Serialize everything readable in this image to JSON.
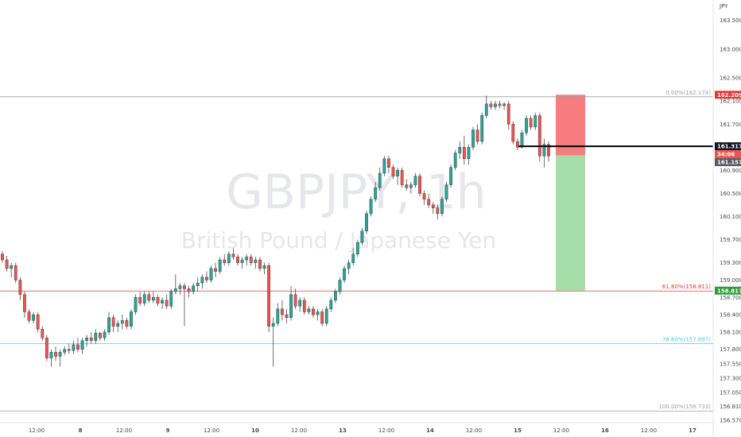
{
  "watermark": {
    "symbol": "GBPJPY, 1h",
    "description": "British Pound / Japanese Yen"
  },
  "currency": "JPY",
  "colors": {
    "up": "#26a69a",
    "down": "#ef5350",
    "wick": "#4a4a4a",
    "fib0": "#9e9e9e",
    "fib618": "#e53935",
    "fib786": "#4dd0e1",
    "fib100": "#9e9e9e",
    "stop_zone": "#f77c80",
    "target_zone": "#a5dea8",
    "entry_line": "#000000"
  },
  "chart_data": {
    "type": "candlestick",
    "symbol": "GBPJPY",
    "timeframe": "1h",
    "y_axis": {
      "ylim": [
        156.53,
        163.85
      ],
      "ticks": [
        "156.570",
        "156.810",
        "157.050",
        "157.300",
        "157.550",
        "157.800",
        "158.100",
        "158.400",
        "158.700",
        "159.000",
        "159.300",
        "159.700",
        "160.100",
        "160.500",
        "160.900",
        "161.300",
        "161.700",
        "162.100",
        "162.500",
        "163.000",
        "163.500"
      ]
    },
    "x_axis": {
      "ticks": [
        "12:00",
        "8",
        "12:00",
        "9",
        "12:00",
        "10",
        "12:00",
        "13",
        "12:00",
        "14",
        "12:00",
        "15",
        "12:00",
        "16",
        "12:00",
        "17"
      ]
    },
    "fib_levels": [
      {
        "label": "0.00%(162.174)",
        "level": 162.174,
        "name": "fib0"
      },
      {
        "label": "61.80%(158.811)",
        "level": 158.811,
        "name": "fib618"
      },
      {
        "label": "78.60%(157.897)",
        "level": 157.897,
        "name": "fib786"
      },
      {
        "label": "100.00%(156.733)",
        "level": 156.733,
        "name": "fib100"
      }
    ],
    "position": {
      "type": "short",
      "entry": 161.157,
      "stop": 162.209,
      "target": 158.817,
      "stop_label": "162.209",
      "target_label": "158.817",
      "entry_label": "161.157"
    },
    "current_price": {
      "label": "161.317",
      "value": 161.317,
      "countdown": "34:06"
    },
    "candles": [
      [
        159.45,
        159.5,
        159.3,
        159.35
      ],
      [
        159.35,
        159.42,
        159.15,
        159.2
      ],
      [
        159.2,
        159.3,
        159.05,
        159.25
      ],
      [
        159.25,
        159.3,
        158.95,
        159.0
      ],
      [
        159.0,
        159.05,
        158.65,
        158.75
      ],
      [
        158.75,
        158.8,
        158.35,
        158.45
      ],
      [
        158.45,
        158.5,
        158.25,
        158.3
      ],
      [
        158.3,
        158.45,
        158.25,
        158.4
      ],
      [
        158.4,
        158.45,
        158.1,
        158.15
      ],
      [
        158.15,
        158.2,
        157.95,
        158.0
      ],
      [
        158.0,
        158.05,
        157.6,
        157.65
      ],
      [
        157.65,
        157.8,
        157.5,
        157.75
      ],
      [
        157.75,
        157.85,
        157.6,
        157.68
      ],
      [
        157.68,
        157.8,
        157.5,
        157.75
      ],
      [
        157.75,
        157.85,
        157.7,
        157.8
      ],
      [
        157.8,
        157.9,
        157.72,
        157.78
      ],
      [
        157.78,
        157.95,
        157.72,
        157.88
      ],
      [
        157.88,
        158.0,
        157.75,
        157.8
      ],
      [
        157.8,
        158.0,
        157.72,
        157.95
      ],
      [
        157.95,
        158.05,
        157.85,
        158.0
      ],
      [
        158.0,
        158.1,
        157.9,
        157.95
      ],
      [
        157.95,
        158.15,
        157.9,
        158.08
      ],
      [
        158.08,
        158.1,
        157.95,
        158.0
      ],
      [
        158.0,
        158.15,
        157.95,
        158.1
      ],
      [
        158.1,
        158.45,
        158.05,
        158.35
      ],
      [
        158.35,
        158.4,
        158.1,
        158.2
      ],
      [
        158.2,
        158.3,
        158.1,
        158.25
      ],
      [
        158.25,
        158.4,
        158.15,
        158.3
      ],
      [
        158.3,
        158.35,
        158.15,
        158.2
      ],
      [
        158.2,
        158.5,
        158.15,
        158.45
      ],
      [
        158.45,
        158.75,
        158.4,
        158.7
      ],
      [
        158.7,
        158.8,
        158.55,
        158.6
      ],
      [
        158.6,
        158.8,
        158.55,
        158.75
      ],
      [
        158.75,
        158.8,
        158.6,
        158.65
      ],
      [
        158.65,
        158.8,
        158.6,
        158.7
      ],
      [
        158.7,
        158.75,
        158.55,
        158.6
      ],
      [
        158.6,
        158.7,
        158.5,
        158.65
      ],
      [
        158.65,
        158.75,
        158.5,
        158.55
      ],
      [
        158.55,
        158.85,
        158.5,
        158.8
      ],
      [
        158.8,
        159.1,
        158.75,
        158.85
      ],
      [
        158.85,
        158.95,
        158.75,
        158.9
      ],
      [
        158.9,
        158.95,
        158.2,
        158.85
      ],
      [
        158.85,
        158.9,
        158.7,
        158.8
      ],
      [
        158.8,
        158.95,
        158.75,
        158.9
      ],
      [
        158.9,
        159.05,
        158.8,
        158.95
      ],
      [
        158.95,
        159.1,
        158.85,
        159.05
      ],
      [
        159.05,
        159.15,
        158.95,
        159.0
      ],
      [
        159.0,
        159.25,
        158.95,
        159.2
      ],
      [
        159.2,
        159.3,
        159.05,
        159.15
      ],
      [
        159.15,
        159.4,
        159.1,
        159.35
      ],
      [
        159.35,
        159.45,
        159.25,
        159.3
      ],
      [
        159.3,
        159.5,
        159.25,
        159.45
      ],
      [
        159.45,
        159.55,
        159.35,
        159.4
      ],
      [
        159.4,
        159.45,
        159.25,
        159.3
      ],
      [
        159.3,
        159.4,
        159.2,
        159.35
      ],
      [
        159.35,
        159.45,
        159.25,
        159.4
      ],
      [
        159.4,
        159.45,
        159.25,
        159.3
      ],
      [
        159.3,
        159.4,
        159.2,
        159.35
      ],
      [
        159.35,
        159.4,
        159.15,
        159.2
      ],
      [
        159.2,
        159.3,
        159.1,
        159.25
      ],
      [
        159.25,
        159.3,
        158.1,
        158.2
      ],
      [
        158.2,
        158.35,
        157.5,
        158.25
      ],
      [
        158.25,
        158.6,
        158.2,
        158.5
      ],
      [
        158.5,
        158.65,
        158.3,
        158.4
      ],
      [
        158.4,
        158.5,
        158.25,
        158.35
      ],
      [
        158.35,
        158.9,
        158.3,
        158.75
      ],
      [
        158.75,
        158.85,
        158.5,
        158.55
      ],
      [
        158.55,
        158.7,
        158.45,
        158.65
      ],
      [
        158.65,
        158.7,
        158.4,
        158.45
      ],
      [
        158.45,
        158.55,
        158.4,
        158.5
      ],
      [
        158.5,
        158.55,
        158.35,
        158.4
      ],
      [
        158.4,
        158.5,
        158.3,
        158.45
      ],
      [
        158.45,
        158.5,
        158.2,
        158.25
      ],
      [
        158.25,
        158.55,
        158.2,
        158.5
      ],
      [
        158.5,
        158.7,
        158.45,
        158.65
      ],
      [
        158.65,
        158.85,
        158.6,
        158.8
      ],
      [
        158.8,
        159.05,
        158.75,
        159.0
      ],
      [
        159.0,
        159.25,
        158.95,
        159.2
      ],
      [
        159.2,
        159.35,
        159.1,
        159.3
      ],
      [
        159.3,
        159.55,
        159.25,
        159.45
      ],
      [
        159.45,
        159.7,
        159.4,
        159.65
      ],
      [
        159.65,
        159.9,
        159.6,
        159.85
      ],
      [
        159.85,
        160.2,
        159.8,
        160.15
      ],
      [
        160.15,
        160.45,
        160.1,
        160.4
      ],
      [
        160.4,
        160.7,
        160.35,
        160.6
      ],
      [
        160.6,
        160.95,
        160.55,
        160.85
      ],
      [
        160.85,
        161.15,
        160.8,
        161.1
      ],
      [
        161.1,
        161.15,
        160.85,
        160.95
      ],
      [
        160.95,
        161.0,
        160.75,
        160.8
      ],
      [
        160.8,
        160.95,
        160.65,
        160.9
      ],
      [
        160.9,
        160.95,
        160.6,
        160.65
      ],
      [
        160.65,
        160.75,
        160.55,
        160.6
      ],
      [
        160.6,
        160.7,
        160.5,
        160.65
      ],
      [
        160.65,
        160.85,
        160.6,
        160.8
      ],
      [
        160.8,
        160.85,
        160.45,
        160.5
      ],
      [
        160.5,
        160.55,
        160.3,
        160.4
      ],
      [
        160.4,
        160.5,
        160.25,
        160.3
      ],
      [
        160.3,
        160.35,
        160.15,
        160.25
      ],
      [
        160.25,
        160.3,
        160.05,
        160.15
      ],
      [
        160.15,
        160.45,
        160.1,
        160.4
      ],
      [
        160.4,
        160.7,
        160.35,
        160.65
      ],
      [
        160.65,
        161.0,
        160.6,
        160.95
      ],
      [
        160.95,
        161.25,
        160.9,
        161.2
      ],
      [
        161.2,
        161.4,
        161.1,
        161.3
      ],
      [
        161.3,
        161.5,
        161.0,
        161.1
      ],
      [
        161.1,
        161.35,
        161.0,
        161.3
      ],
      [
        161.3,
        161.65,
        161.25,
        161.6
      ],
      [
        161.6,
        161.7,
        161.35,
        161.4
      ],
      [
        161.4,
        161.9,
        161.35,
        161.85
      ],
      [
        161.85,
        162.2,
        161.8,
        162.05
      ],
      [
        162.05,
        162.1,
        161.95,
        162.0
      ],
      [
        162.0,
        162.1,
        161.95,
        162.05
      ],
      [
        162.05,
        162.1,
        161.98,
        162.02
      ],
      [
        162.02,
        162.08,
        161.95,
        162.05
      ],
      [
        162.05,
        162.1,
        161.6,
        161.7
      ],
      [
        161.7,
        161.75,
        161.35,
        161.4
      ],
      [
        161.4,
        161.45,
        161.25,
        161.3
      ],
      [
        161.3,
        161.6,
        161.28,
        161.55
      ],
      [
        161.55,
        161.85,
        161.5,
        161.8
      ],
      [
        161.8,
        161.85,
        161.6,
        161.65
      ],
      [
        161.65,
        161.9,
        161.6,
        161.85
      ],
      [
        161.85,
        161.9,
        161.05,
        161.15
      ],
      [
        161.15,
        161.45,
        160.95,
        161.35
      ],
      [
        161.35,
        161.4,
        161.05,
        161.15
      ]
    ]
  }
}
